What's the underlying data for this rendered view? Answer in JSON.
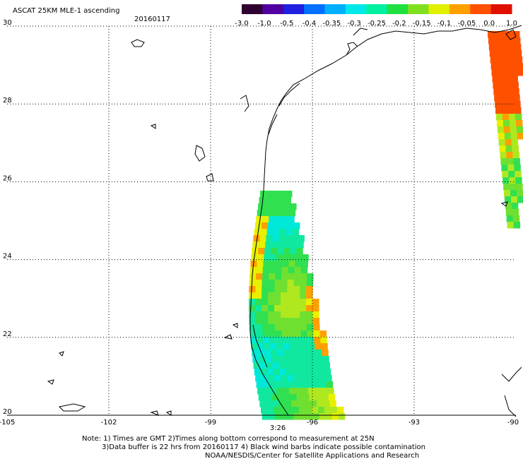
{
  "header": {
    "title": "ASCAT 25KM MLE-1 ascending",
    "date": "20160117"
  },
  "colorbar": {
    "tick_labels": [
      "-3.0",
      "-1.0",
      "-0.5",
      "-0.4",
      "-0.35",
      "-0.3",
      "-0.25",
      "-0.2",
      "-0.15",
      "-0.1",
      "-0.05",
      "0.0",
      "1.0"
    ],
    "colors": [
      "#300030",
      "#5000a0",
      "#2020e0",
      "#0070ff",
      "#00b0ff",
      "#00e8e8",
      "#00f0a0",
      "#20e040",
      "#80e020",
      "#e0f000",
      "#ffa000",
      "#ff5000",
      "#e01000"
    ]
  },
  "axes": {
    "lon_range": [
      -105,
      -90
    ],
    "lat_range": [
      20,
      30
    ],
    "x_tick_labels": [
      "-105",
      "-102",
      "-99",
      "-96",
      "-93",
      "-90"
    ],
    "y_tick_labels": [
      "30",
      "28",
      "26",
      "24",
      "22",
      "20"
    ],
    "grid": "dotted"
  },
  "time_label": "3:26",
  "time_label_color": "#cc2200",
  "notes": [
    "Note: 1) Times are GMT 2)Times along bottom correspond to measurement at 25N",
    "3)Data buffer is 22 hrs from 20160117 4) Black wind barbs indicate possible contamination",
    "NOAA/NESDIS/Center for Satellite Applications and Research"
  ]
}
